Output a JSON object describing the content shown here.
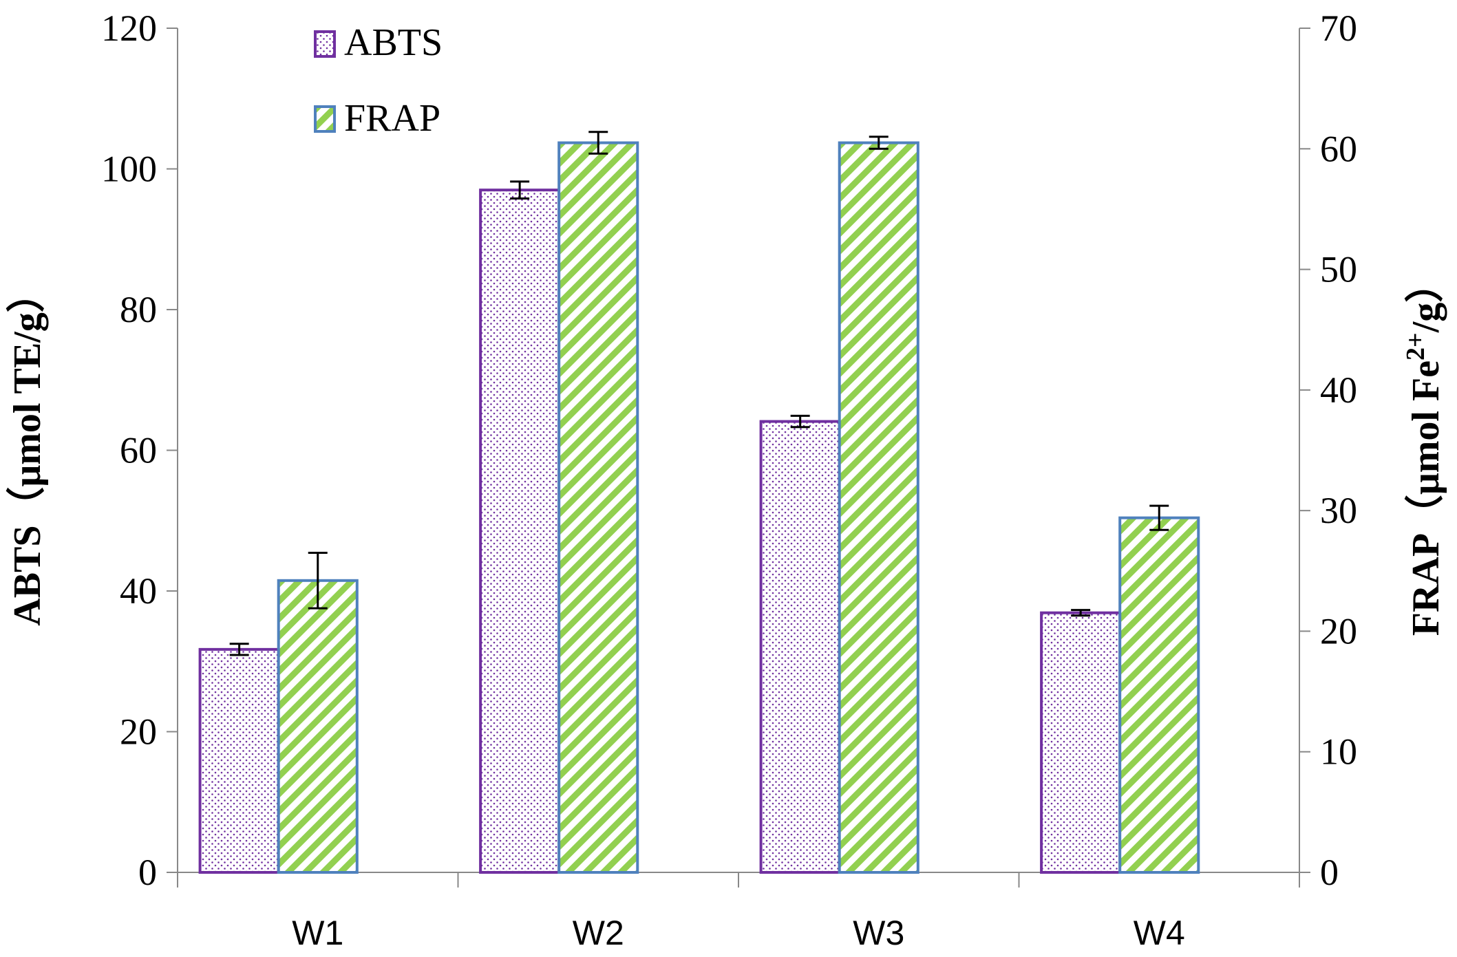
{
  "chart_data": {
    "type": "bar",
    "categories": [
      "W1",
      "W2",
      "W3",
      "W4"
    ],
    "series": [
      {
        "name": "ABTS",
        "axis": "left",
        "values": [
          31.7,
          97.0,
          64.1,
          36.9
        ],
        "errors": [
          0.8,
          1.2,
          0.8,
          0.4
        ],
        "color": "#7030A0"
      },
      {
        "name": "FRAP",
        "axis": "right",
        "values": [
          24.2,
          60.5,
          60.5,
          29.4
        ],
        "errors": [
          2.3,
          0.9,
          0.5,
          1.0
        ],
        "color": "#4F81BD",
        "fill": "#92D050"
      }
    ],
    "ylabel": "ABTS（μmol TE/g）",
    "y2label": "FRAP（μmol Fe2+/g）",
    "y2label_parts": {
      "prefix": "FRAP（μmol Fe",
      "sup": "2+",
      "suffix": "/g）"
    },
    "ylim": [
      0,
      120
    ],
    "y2lim": [
      0,
      70
    ],
    "yticks": [
      "0",
      "20",
      "40",
      "60",
      "80",
      "100",
      "120"
    ],
    "y2ticks": [
      "0",
      "10",
      "20",
      "30",
      "40",
      "50",
      "60",
      "70"
    ],
    "legend": {
      "placement": "top-left",
      "items": [
        "ABTS",
        "FRAP"
      ]
    },
    "grid": false
  }
}
